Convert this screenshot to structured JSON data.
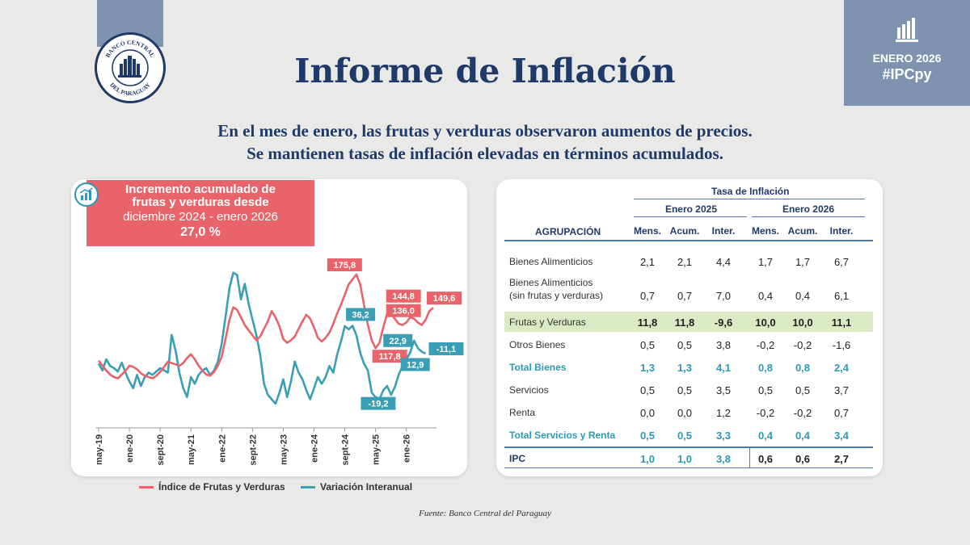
{
  "header": {
    "title": "Informe de Inflación",
    "date_label": "ENERO 2026",
    "hashtag": "#IPCpy",
    "subtitle_line1": "En el mes de enero, las frutas y verduras observaron aumentos de precios.",
    "subtitle_line2": "Se mantienen tasas de inflación elevadas en términos acumulados.",
    "logo_text_top": "BANCO CENTRAL",
    "logo_text_bottom": "DEL PARAGUAY"
  },
  "callout": {
    "line1": "Incremento acumulado de",
    "line2": "frutas y verduras desde",
    "line3": "diciembre 2024 - enero 2026",
    "value": "27,0 %"
  },
  "legend": {
    "series1": "Índice de Frutas y Verduras",
    "series2": "Variación Interanual"
  },
  "source": "Fuente: Banco Central del Paraguay",
  "colors": {
    "navy": "#1f3a68",
    "red": "#e8646a",
    "teal": "#3a9fb4",
    "green_highlight": "#dbe9c5",
    "accent": "#7d93b0"
  },
  "table": {
    "caption": "Tasa de Inflación",
    "group1": "Enero 2025",
    "group2": "Enero 2026",
    "label_header": "AGRUPACIÓN",
    "col_headers": [
      "Mens.",
      "Acum.",
      "Inter.",
      "Mens.",
      "Acum.",
      "Inter."
    ],
    "rows": [
      {
        "label": "Bienes Alimenticios",
        "sublabel": "",
        "values": [
          "2,1",
          "2,1",
          "4,4",
          "1,7",
          "1,7",
          "6,7"
        ]
      },
      {
        "label": "Bienes Alimenticios",
        "sublabel": "(sin frutas y verduras)",
        "values": [
          "0,7",
          "0,7",
          "7,0",
          "0,4",
          "0,4",
          "6,1"
        ]
      },
      {
        "label": "Frutas y Verduras",
        "sublabel": "",
        "values": [
          "11,8",
          "11,8",
          "-9,6",
          "10,0",
          "10,0",
          "11,1"
        ]
      },
      {
        "label": "Otros Bienes",
        "sublabel": "",
        "values": [
          "0,5",
          "0,5",
          "3,8",
          "-0,2",
          "-0,2",
          "-1,6"
        ]
      },
      {
        "label": "Total Bienes",
        "sublabel": "",
        "values": [
          "1,3",
          "1,3",
          "4,1",
          "0,8",
          "0,8",
          "2,4"
        ]
      },
      {
        "label": "Servicios",
        "sublabel": "",
        "values": [
          "0,5",
          "0,5",
          "3,5",
          "0,5",
          "0,5",
          "3,7"
        ]
      },
      {
        "label": "Renta",
        "sublabel": "",
        "values": [
          "0,0",
          "0,0",
          "1,2",
          "-0,2",
          "-0,2",
          "0,7"
        ]
      },
      {
        "label": "Total Servicios y Renta",
        "sublabel": "",
        "values": [
          "0,5",
          "0,5",
          "3,3",
          "0,4",
          "0,4",
          "3,4"
        ]
      },
      {
        "label": "IPC",
        "sublabel": "",
        "values": [
          "1,0",
          "1,0",
          "3,8",
          "0,6",
          "0,6",
          "2,7"
        ]
      }
    ]
  },
  "chart_data": {
    "type": "line",
    "x_ticks": [
      "may-19",
      "ene-20",
      "sept-20",
      "may-21",
      "ene-22",
      "sept-22",
      "may-23",
      "ene-24",
      "sept-24",
      "may-25",
      "ene-26"
    ],
    "annotations": [
      "175,8",
      "144,8",
      "136,0",
      "149,6",
      "117,8",
      "36,2",
      "22,9",
      "12,9",
      "-11,1",
      "-19,2"
    ],
    "series": [
      {
        "name": "Índice de Frutas y Verduras",
        "color": "#e8646a",
        "values": [
          108,
          104,
          100,
          97,
          95,
          94,
          97,
          100,
          104,
          103,
          101,
          98,
          96,
          95,
          94,
          96,
          99,
          103,
          107,
          106,
          105,
          104,
          106,
          110,
          113,
          109,
          104,
          100,
          97,
          96,
          99,
          104,
          111,
          125,
          140,
          150,
          148,
          142,
          136,
          132,
          128,
          124,
          127,
          133,
          139,
          147,
          142,
          135,
          125,
          122,
          124,
          127,
          133,
          139,
          144,
          141,
          134,
          126,
          123,
          126,
          130,
          137,
          145,
          152,
          160,
          168,
          172,
          175.8,
          168,
          152,
          136,
          124,
          117.8,
          122,
          134,
          145,
          144.8,
          141,
          137,
          136,
          138,
          142,
          141,
          138,
          136,
          140,
          147,
          149.6
        ]
      },
      {
        "name": "Variación Interanual",
        "color": "#3a9fb4",
        "values": [
          2,
          -4,
          6,
          0,
          -2,
          -5,
          3,
          -6,
          -14,
          -20,
          -8,
          -18,
          -10,
          -6,
          -8,
          -5,
          -2,
          -4,
          -6,
          28,
          14,
          -6,
          -20,
          -28,
          -10,
          -16,
          -8,
          -4,
          -2,
          -8,
          -4,
          4,
          20,
          44,
          70,
          84,
          82,
          60,
          74,
          56,
          42,
          28,
          10,
          -16,
          -26,
          -30,
          -34,
          -24,
          -12,
          -28,
          -14,
          4,
          -6,
          -12,
          -22,
          -30,
          -20,
          -10,
          -16,
          -10,
          0,
          -6,
          10,
          22,
          36,
          33,
          36.2,
          28,
          12,
          2,
          -4,
          -24,
          -28,
          -30,
          -22,
          -18,
          -26,
          -19.2,
          -8,
          0,
          6,
          12,
          22.9,
          16,
          12.9,
          11.1
        ]
      }
    ],
    "title": "",
    "xlabel": "",
    "ylabel": "",
    "y1lim": [
      60,
      200
    ],
    "y2lim": [
      -50,
      110
    ],
    "grid": false,
    "legend_position": "bottom"
  }
}
